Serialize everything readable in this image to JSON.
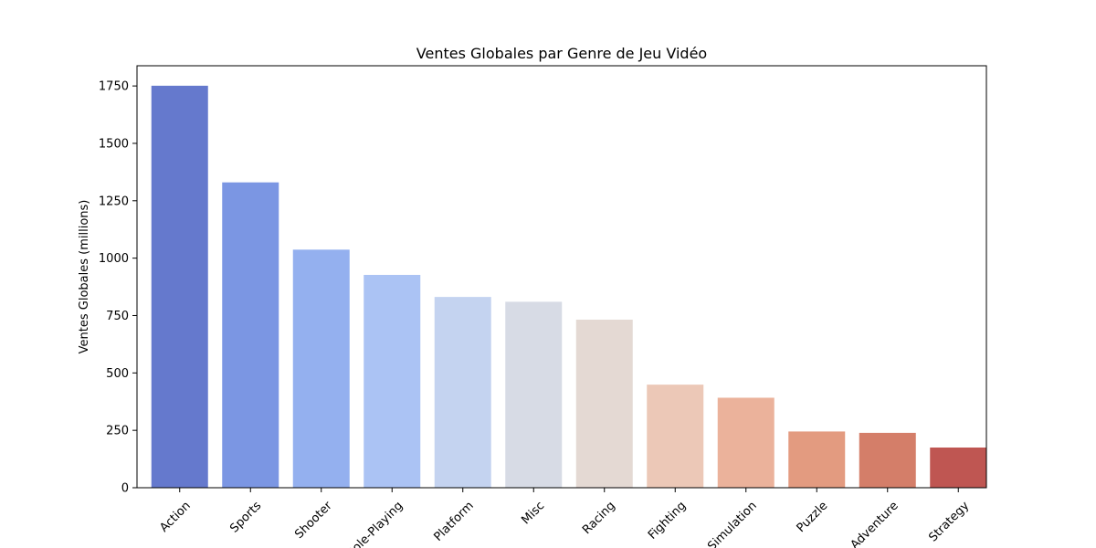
{
  "chart_data": {
    "type": "bar",
    "title": "Ventes Globales par Genre de Jeu Vidéo",
    "xlabel": "",
    "ylabel": "Ventes Globales (millions)",
    "ylim": [
      0,
      1838
    ],
    "yticks": [
      0,
      250,
      500,
      750,
      1000,
      1250,
      1500,
      1750
    ],
    "grid": false,
    "categories": [
      "Action",
      "Sports",
      "Shooter",
      "Role-Playing",
      "Platform",
      "Misc",
      "Racing",
      "Fighting",
      "Simulation",
      "Puzzle",
      "Adventure",
      "Strategy"
    ],
    "values": [
      1751,
      1330,
      1037,
      927,
      831,
      810,
      732,
      449,
      392,
      245,
      239,
      175
    ],
    "colors": [
      "#6579cd",
      "#7b96e3",
      "#94b0ef",
      "#abc3f4",
      "#c4d3f0",
      "#d7dbe5",
      "#e4d9d3",
      "#ecc8b7",
      "#ebb29b",
      "#e39b80",
      "#d47e69",
      "#bf5652"
    ]
  }
}
